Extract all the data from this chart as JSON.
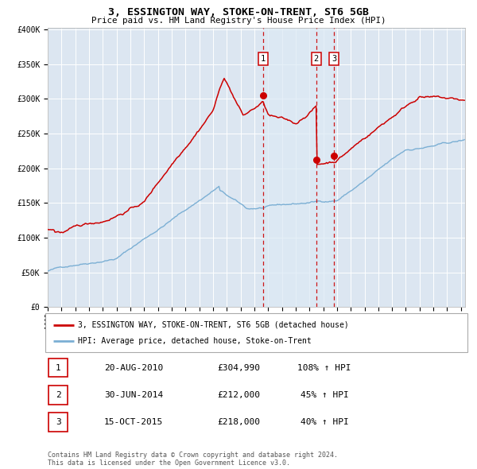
{
  "title": "3, ESSINGTON WAY, STOKE-ON-TRENT, ST6 5GB",
  "subtitle": "Price paid vs. HM Land Registry's House Price Index (HPI)",
  "legend_line1": "3, ESSINGTON WAY, STOKE-ON-TRENT, ST6 5GB (detached house)",
  "legend_line2": "HPI: Average price, detached house, Stoke-on-Trent",
  "red_color": "#cc0000",
  "blue_color": "#7bafd4",
  "shade_color": "#dce9f5",
  "background_color": "#dce6f1",
  "grid_color": "#ffffff",
  "transaction_years": [
    2010.635,
    2014.496,
    2015.787
  ],
  "transaction_prices": [
    304990,
    212000,
    218000
  ],
  "transaction_labels": [
    "1",
    "2",
    "3"
  ],
  "transaction_dates": [
    "20-AUG-2010",
    "30-JUN-2014",
    "15-OCT-2015"
  ],
  "transaction_prices_str": [
    "£304,990",
    "£212,000",
    "£218,000"
  ],
  "transaction_hpi": [
    "108% ↑ HPI",
    "45% ↑ HPI",
    "40% ↑ HPI"
  ],
  "footnote_line1": "Contains HM Land Registry data © Crown copyright and database right 2024.",
  "footnote_line2": "This data is licensed under the Open Government Licence v3.0.",
  "ylim_max": 400000,
  "xlim_start": 1995.0,
  "xlim_end": 2025.3
}
